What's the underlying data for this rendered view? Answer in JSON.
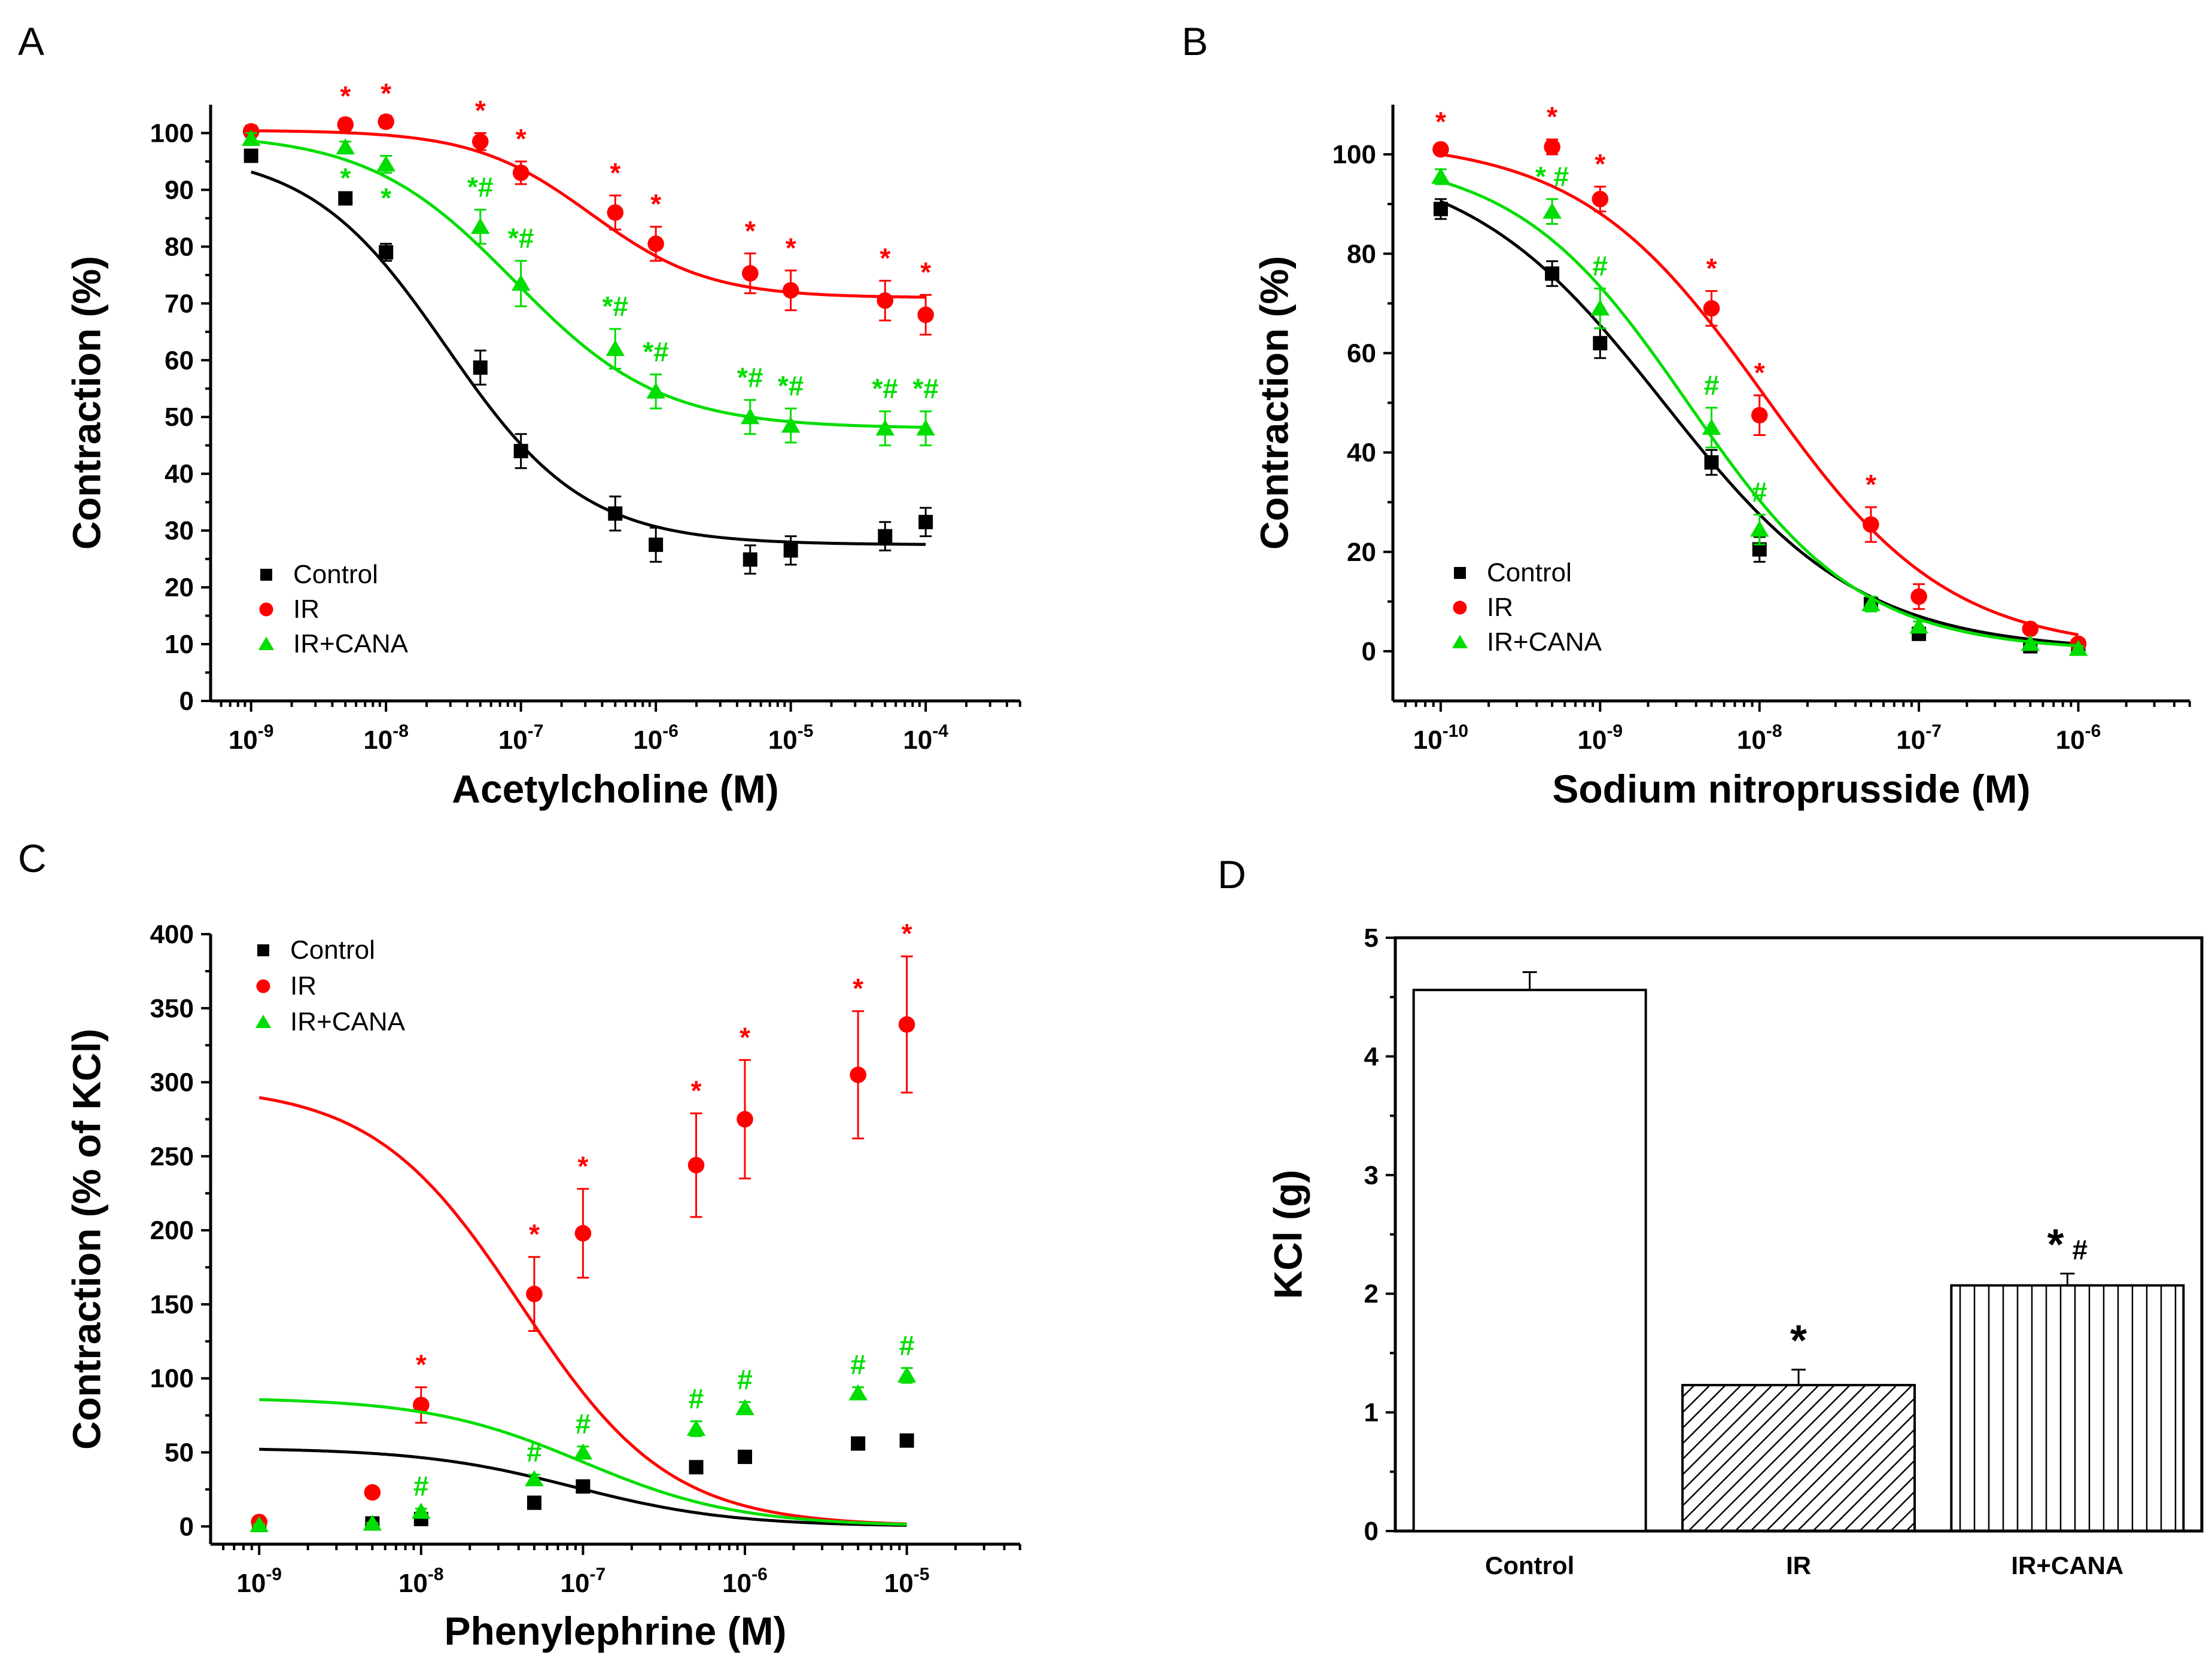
{
  "colors": {
    "control": "#000000",
    "ir": "#ff0000",
    "irCana": "#00dd00"
  },
  "panels": {
    "A": {
      "letter": "A"
    },
    "B": {
      "letter": "B"
    },
    "C": {
      "letter": "C"
    },
    "D": {
      "letter": "D"
    }
  },
  "chart_data": [
    {
      "panel": "A",
      "type": "line",
      "title": "",
      "xlabel": "Acetylcholine (M)",
      "ylabel": "Contraction (%)",
      "x_scale": "log",
      "xlim_log10": [
        -9.3,
        -3.3
      ],
      "ylim": [
        0,
        105
      ],
      "yticks": [
        0,
        10,
        20,
        30,
        40,
        50,
        60,
        70,
        80,
        90,
        100
      ],
      "ytick_labels": [
        "0",
        "10",
        "20",
        "30",
        "40",
        "50",
        "60",
        "70",
        "80",
        "90",
        "100"
      ],
      "xtick_exponents": [
        -9,
        -8,
        -7,
        -6,
        -5,
        -4
      ],
      "xtick_base": "10",
      "legend_position": "lower-left",
      "x_log10": [
        -9,
        -8.301,
        -8,
        -7.301,
        -7,
        -6.301,
        -6,
        -5.301,
        -5,
        -4.301,
        -4
      ],
      "series": [
        {
          "name": "Control",
          "key": "control",
          "marker": "square",
          "values": [
            96,
            88.5,
            79,
            58.7,
            44,
            33,
            27.5,
            24.9,
            26.5,
            29,
            31.5
          ],
          "errors": [
            1,
            1,
            1.5,
            3,
            3,
            3,
            3,
            2.5,
            2.5,
            2.5,
            2.5
          ],
          "fit": {
            "top": 97,
            "bottom": 27.5,
            "log_ec50": -7.55,
            "hill": 0.85
          },
          "annotations": [
            "",
            "",
            "",
            "",
            "",
            "",
            "",
            "",
            "",
            "",
            ""
          ]
        },
        {
          "name": "IR",
          "key": "ir",
          "marker": "circle",
          "values": [
            100.3,
            101.5,
            102,
            98.5,
            93,
            86,
            80.5,
            75.3,
            72.3,
            70.5,
            68
          ],
          "errors": [
            1,
            1,
            1,
            1.5,
            2,
            3,
            3,
            3.5,
            3.5,
            3.5,
            3.5
          ],
          "fit": {
            "top": 100.5,
            "bottom": 71,
            "log_ec50": -6.48,
            "hill": 1.0
          },
          "annotations": [
            "",
            "*",
            "*",
            "*",
            "*",
            "*",
            "*",
            "*",
            "*",
            "*",
            "*"
          ]
        },
        {
          "name": "IR+CANA",
          "key": "irCana",
          "marker": "triangle",
          "values": [
            99,
            97.5,
            94.5,
            83.5,
            73.5,
            62,
            54.5,
            50,
            48.5,
            48,
            48
          ],
          "errors": [
            1,
            1,
            1.5,
            3,
            4,
            3.5,
            3,
            3,
            3,
            3,
            3
          ],
          "fit": {
            "top": 100,
            "bottom": 48,
            "log_ec50": -7.05,
            "hill": 0.8
          },
          "annotations": [
            "",
            "*",
            "*",
            "*#",
            "*#",
            "*#",
            "*#",
            "*#",
            "*#",
            "*#",
            "*#"
          ]
        }
      ]
    },
    {
      "panel": "B",
      "type": "line",
      "title": "",
      "xlabel": "Sodium nitroprusside (M)",
      "ylabel": "Contraction (%)",
      "x_scale": "log",
      "xlim_log10": [
        -10.3,
        -5.3
      ],
      "ylim": [
        -10,
        110
      ],
      "yticks": [
        0,
        20,
        40,
        60,
        80,
        100
      ],
      "ytick_labels": [
        "0",
        "20",
        "40",
        "60",
        "80",
        "100"
      ],
      "xtick_exponents": [
        -10,
        -9,
        -8,
        -7,
        -6
      ],
      "xtick_base": "10",
      "legend_position": "lower-left",
      "x_log10": [
        -10,
        -9.301,
        -9,
        -8.301,
        -8,
        -7.301,
        -7,
        -6.301,
        -6
      ],
      "series": [
        {
          "name": "Control",
          "key": "control",
          "marker": "square",
          "values": [
            89,
            76,
            62,
            38,
            20.5,
            9.5,
            3.5,
            1,
            1
          ],
          "errors": [
            2,
            2.5,
            3,
            2.5,
            2.5,
            1.5,
            1,
            0.5,
            0.5
          ],
          "fit": {
            "top": 100,
            "bottom": 0,
            "log_ec50": -8.6,
            "hill": 0.7
          },
          "annotations": [
            "",
            "",
            "",
            "",
            "",
            "",
            "",
            "",
            ""
          ]
        },
        {
          "name": "IR",
          "key": "ir",
          "marker": "circle",
          "values": [
            101,
            101.5,
            91,
            69,
            47.5,
            25.5,
            11,
            4.5,
            1.5
          ],
          "errors": [
            1,
            1.5,
            2.5,
            3.5,
            4,
            3.5,
            2.5,
            1,
            0.5
          ],
          "fit": {
            "top": 103,
            "bottom": 0,
            "log_ec50": -7.97,
            "hill": 0.75
          },
          "annotations": [
            "*",
            "*",
            "*",
            "*",
            "*",
            "*",
            "",
            "",
            ""
          ]
        },
        {
          "name": "IR+CANA",
          "key": "irCana",
          "marker": "triangle",
          "values": [
            95.5,
            88.5,
            69,
            45,
            24.5,
            9.5,
            5,
            1.5,
            0.5
          ],
          "errors": [
            1.5,
            2.5,
            4,
            4,
            3,
            1.5,
            1,
            0.5,
            0.5
          ],
          "fit": {
            "top": 100,
            "bottom": 0,
            "log_ec50": -8.45,
            "hill": 0.8
          },
          "annotations": [
            "",
            "* #",
            "#",
            "#",
            "#",
            "",
            "",
            "",
            ""
          ]
        }
      ]
    },
    {
      "panel": "C",
      "type": "line",
      "title": "",
      "xlabel": "Phenylephrine (M)",
      "ylabel": "Contraction (% of KCl)",
      "x_scale": "log",
      "xlim_log10": [
        -9.3,
        -4.3
      ],
      "ylim": [
        -12,
        400
      ],
      "yticks": [
        0,
        50,
        100,
        150,
        200,
        250,
        300,
        350,
        400
      ],
      "ytick_labels": [
        "0",
        "50",
        "100",
        "150",
        "200",
        "250",
        "300",
        "350",
        "400"
      ],
      "xtick_exponents": [
        -9,
        -8,
        -7,
        -6,
        -5
      ],
      "xtick_base": "10",
      "legend_position": "top-left",
      "x_log10": [
        -9,
        -8.301,
        -8,
        -7.301,
        -7,
        -6.301,
        -6,
        -5.301,
        -5
      ],
      "series": [
        {
          "name": "Control",
          "key": "control",
          "marker": "square",
          "values": [
            1,
            2,
            5,
            16,
            27,
            40,
            47,
            56,
            58
          ],
          "errors": [
            0.5,
            0.5,
            1,
            2,
            3,
            4,
            3,
            3,
            4
          ],
          "fit": {
            "top": 53,
            "bottom": 0,
            "log_ec50": -7.05,
            "hill": 0.9
          },
          "annotations": [
            "",
            "",
            "",
            "",
            "",
            "",
            "",
            "",
            ""
          ]
        },
        {
          "name": "IR",
          "key": "ir",
          "marker": "circle",
          "values": [
            3,
            23,
            82,
            157,
            198,
            244,
            275,
            305,
            339
          ],
          "errors": [
            1,
            3,
            12,
            25,
            30,
            35,
            40,
            43,
            46
          ],
          "fit": {
            "top": 298,
            "bottom": 0,
            "log_ec50": -7.38,
            "hill": 0.95
          },
          "annotations": [
            "",
            "",
            "*",
            "*",
            "*",
            "*",
            "*",
            "*",
            "*"
          ]
        },
        {
          "name": "IR+CANA",
          "key": "irCana",
          "marker": "triangle",
          "values": [
            1,
            2,
            10,
            32,
            50,
            66,
            80,
            90,
            102
          ],
          "errors": [
            0.5,
            0.5,
            2,
            3,
            4,
            5,
            4,
            4,
            5
          ],
          "fit": {
            "top": 87,
            "bottom": 0,
            "log_ec50": -7.0,
            "hill": 0.9
          },
          "annotations": [
            "",
            "",
            "#",
            "#",
            "#",
            "#",
            "#",
            "#",
            "#"
          ]
        }
      ]
    },
    {
      "panel": "D",
      "type": "bar",
      "title": "",
      "xlabel": "",
      "ylabel": "KCl (g)",
      "ylim": [
        0,
        5
      ],
      "yticks": [
        0,
        1,
        2,
        3,
        4,
        5
      ],
      "ytick_labels": [
        "0",
        "1",
        "2",
        "3",
        "4",
        "5"
      ],
      "categories": [
        "Control",
        "IR",
        "IR+CANA"
      ],
      "values": [
        4.56,
        1.23,
        2.07
      ],
      "errors": [
        0.15,
        0.13,
        0.1
      ],
      "patterns": [
        "none",
        "diagonal",
        "vertical"
      ],
      "annotations": [
        "",
        "*",
        "* #"
      ]
    }
  ]
}
